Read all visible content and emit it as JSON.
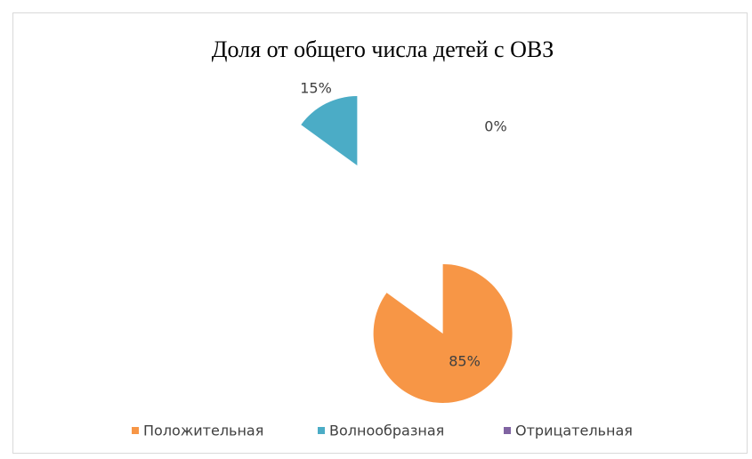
{
  "chart_data": {
    "type": "pie",
    "title": "Доля от общего числа детей с ОВЗ",
    "categories": [
      "Положительная",
      "Волнообразная",
      "Отрицательная"
    ],
    "values": [
      85,
      15,
      0
    ],
    "value_labels": [
      "85%",
      "15%",
      "0%"
    ],
    "colors": [
      "#f79646",
      "#4bacc6",
      "#8064a2"
    ],
    "legend": "bottom"
  }
}
